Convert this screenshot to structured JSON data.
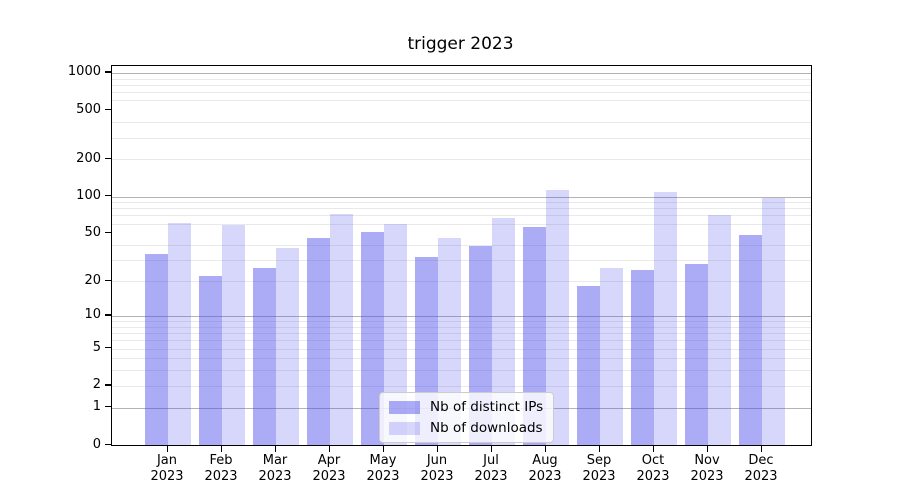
{
  "chart_data": {
    "type": "bar",
    "title": "trigger 2023",
    "months": [
      "Jan",
      "Feb",
      "Mar",
      "Apr",
      "May",
      "Jun",
      "Jul",
      "Aug",
      "Sep",
      "Oct",
      "Nov",
      "Dec"
    ],
    "year": "2023",
    "series": [
      {
        "name": "Nb of distinct IPs",
        "color": "rgba(72,72,235,0.45)",
        "values": [
          34,
          22,
          26,
          46,
          51,
          32,
          39,
          56,
          18,
          25,
          28,
          48
        ]
      },
      {
        "name": "Nb of downloads",
        "color": "rgba(72,72,235,0.22)",
        "values": [
          61,
          58,
          38,
          72,
          60,
          46,
          67,
          113,
          26,
          109,
          71,
          97
        ]
      }
    ],
    "yscale": "log1p",
    "ylim": [
      0,
      1150
    ],
    "yticks": [
      0,
      1,
      2,
      5,
      10,
      20,
      50,
      100,
      200,
      500,
      1000
    ],
    "major_grid_values": [
      1,
      10,
      100,
      1000
    ],
    "minor_grid_values": [
      2,
      3,
      4,
      5,
      6,
      7,
      8,
      9,
      20,
      30,
      40,
      60,
      70,
      80,
      90,
      200,
      300,
      400,
      600,
      700,
      800,
      900
    ],
    "grid": true,
    "legend_position": "lower center",
    "xlabel": "",
    "ylabel": ""
  },
  "colors": {
    "major_grid": "#b3b3b3",
    "minor_grid": "#e9e9e9",
    "spine": "#000000",
    "text": "#000000"
  }
}
